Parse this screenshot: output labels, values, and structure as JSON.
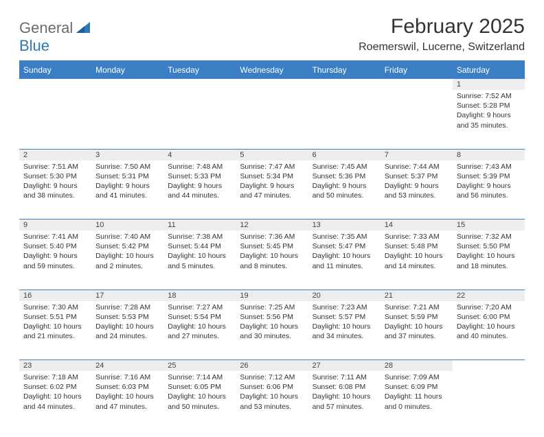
{
  "brand": {
    "general": "General",
    "blue": "Blue"
  },
  "title": "February 2025",
  "location": "Roemerswil, Lucerne, Switzerland",
  "colors": {
    "header_bg": "#3a7fc4",
    "header_text": "#ffffff",
    "daynum_bg": "#ededed",
    "text": "#333333",
    "rule": "#3a7fc4",
    "logo_gray": "#6b6b6b",
    "logo_blue": "#2f77bb",
    "page_bg": "#ffffff"
  },
  "typography": {
    "title_fontsize": 30,
    "location_fontsize": 16,
    "dayheader_fontsize": 12,
    "cell_fontsize": 10.5
  },
  "day_headers": [
    "Sunday",
    "Monday",
    "Tuesday",
    "Wednesday",
    "Thursday",
    "Friday",
    "Saturday"
  ],
  "weeks": [
    {
      "nums": [
        "",
        "",
        "",
        "",
        "",
        "",
        "1"
      ],
      "cells": [
        null,
        null,
        null,
        null,
        null,
        null,
        {
          "sunrise": "Sunrise: 7:52 AM",
          "sunset": "Sunset: 5:28 PM",
          "day1": "Daylight: 9 hours",
          "day2": "and 35 minutes."
        }
      ]
    },
    {
      "nums": [
        "2",
        "3",
        "4",
        "5",
        "6",
        "7",
        "8"
      ],
      "cells": [
        {
          "sunrise": "Sunrise: 7:51 AM",
          "sunset": "Sunset: 5:30 PM",
          "day1": "Daylight: 9 hours",
          "day2": "and 38 minutes."
        },
        {
          "sunrise": "Sunrise: 7:50 AM",
          "sunset": "Sunset: 5:31 PM",
          "day1": "Daylight: 9 hours",
          "day2": "and 41 minutes."
        },
        {
          "sunrise": "Sunrise: 7:48 AM",
          "sunset": "Sunset: 5:33 PM",
          "day1": "Daylight: 9 hours",
          "day2": "and 44 minutes."
        },
        {
          "sunrise": "Sunrise: 7:47 AM",
          "sunset": "Sunset: 5:34 PM",
          "day1": "Daylight: 9 hours",
          "day2": "and 47 minutes."
        },
        {
          "sunrise": "Sunrise: 7:45 AM",
          "sunset": "Sunset: 5:36 PM",
          "day1": "Daylight: 9 hours",
          "day2": "and 50 minutes."
        },
        {
          "sunrise": "Sunrise: 7:44 AM",
          "sunset": "Sunset: 5:37 PM",
          "day1": "Daylight: 9 hours",
          "day2": "and 53 minutes."
        },
        {
          "sunrise": "Sunrise: 7:43 AM",
          "sunset": "Sunset: 5:39 PM",
          "day1": "Daylight: 9 hours",
          "day2": "and 56 minutes."
        }
      ]
    },
    {
      "nums": [
        "9",
        "10",
        "11",
        "12",
        "13",
        "14",
        "15"
      ],
      "cells": [
        {
          "sunrise": "Sunrise: 7:41 AM",
          "sunset": "Sunset: 5:40 PM",
          "day1": "Daylight: 9 hours",
          "day2": "and 59 minutes."
        },
        {
          "sunrise": "Sunrise: 7:40 AM",
          "sunset": "Sunset: 5:42 PM",
          "day1": "Daylight: 10 hours",
          "day2": "and 2 minutes."
        },
        {
          "sunrise": "Sunrise: 7:38 AM",
          "sunset": "Sunset: 5:44 PM",
          "day1": "Daylight: 10 hours",
          "day2": "and 5 minutes."
        },
        {
          "sunrise": "Sunrise: 7:36 AM",
          "sunset": "Sunset: 5:45 PM",
          "day1": "Daylight: 10 hours",
          "day2": "and 8 minutes."
        },
        {
          "sunrise": "Sunrise: 7:35 AM",
          "sunset": "Sunset: 5:47 PM",
          "day1": "Daylight: 10 hours",
          "day2": "and 11 minutes."
        },
        {
          "sunrise": "Sunrise: 7:33 AM",
          "sunset": "Sunset: 5:48 PM",
          "day1": "Daylight: 10 hours",
          "day2": "and 14 minutes."
        },
        {
          "sunrise": "Sunrise: 7:32 AM",
          "sunset": "Sunset: 5:50 PM",
          "day1": "Daylight: 10 hours",
          "day2": "and 18 minutes."
        }
      ]
    },
    {
      "nums": [
        "16",
        "17",
        "18",
        "19",
        "20",
        "21",
        "22"
      ],
      "cells": [
        {
          "sunrise": "Sunrise: 7:30 AM",
          "sunset": "Sunset: 5:51 PM",
          "day1": "Daylight: 10 hours",
          "day2": "and 21 minutes."
        },
        {
          "sunrise": "Sunrise: 7:28 AM",
          "sunset": "Sunset: 5:53 PM",
          "day1": "Daylight: 10 hours",
          "day2": "and 24 minutes."
        },
        {
          "sunrise": "Sunrise: 7:27 AM",
          "sunset": "Sunset: 5:54 PM",
          "day1": "Daylight: 10 hours",
          "day2": "and 27 minutes."
        },
        {
          "sunrise": "Sunrise: 7:25 AM",
          "sunset": "Sunset: 5:56 PM",
          "day1": "Daylight: 10 hours",
          "day2": "and 30 minutes."
        },
        {
          "sunrise": "Sunrise: 7:23 AM",
          "sunset": "Sunset: 5:57 PM",
          "day1": "Daylight: 10 hours",
          "day2": "and 34 minutes."
        },
        {
          "sunrise": "Sunrise: 7:21 AM",
          "sunset": "Sunset: 5:59 PM",
          "day1": "Daylight: 10 hours",
          "day2": "and 37 minutes."
        },
        {
          "sunrise": "Sunrise: 7:20 AM",
          "sunset": "Sunset: 6:00 PM",
          "day1": "Daylight: 10 hours",
          "day2": "and 40 minutes."
        }
      ]
    },
    {
      "nums": [
        "23",
        "24",
        "25",
        "26",
        "27",
        "28",
        ""
      ],
      "cells": [
        {
          "sunrise": "Sunrise: 7:18 AM",
          "sunset": "Sunset: 6:02 PM",
          "day1": "Daylight: 10 hours",
          "day2": "and 44 minutes."
        },
        {
          "sunrise": "Sunrise: 7:16 AM",
          "sunset": "Sunset: 6:03 PM",
          "day1": "Daylight: 10 hours",
          "day2": "and 47 minutes."
        },
        {
          "sunrise": "Sunrise: 7:14 AM",
          "sunset": "Sunset: 6:05 PM",
          "day1": "Daylight: 10 hours",
          "day2": "and 50 minutes."
        },
        {
          "sunrise": "Sunrise: 7:12 AM",
          "sunset": "Sunset: 6:06 PM",
          "day1": "Daylight: 10 hours",
          "day2": "and 53 minutes."
        },
        {
          "sunrise": "Sunrise: 7:11 AM",
          "sunset": "Sunset: 6:08 PM",
          "day1": "Daylight: 10 hours",
          "day2": "and 57 minutes."
        },
        {
          "sunrise": "Sunrise: 7:09 AM",
          "sunset": "Sunset: 6:09 PM",
          "day1": "Daylight: 11 hours",
          "day2": "and 0 minutes."
        },
        null
      ]
    }
  ]
}
